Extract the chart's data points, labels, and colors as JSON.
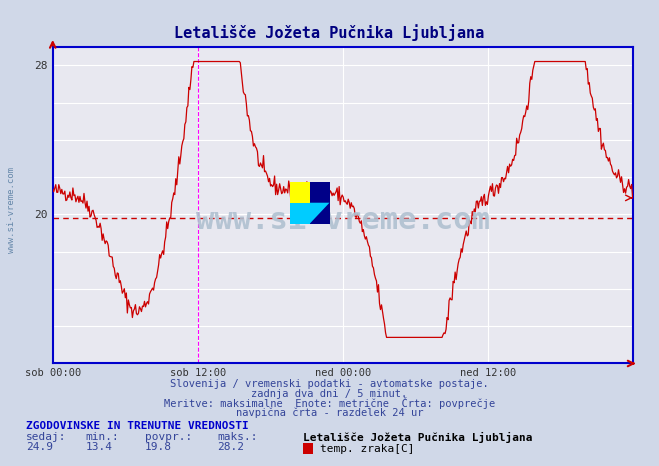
{
  "title": "Letališče Jožeta Pučnika Ljubljana",
  "title_color": "#000080",
  "bg_color": "#d0d8e8",
  "plot_bg_color": "#e8e8f0",
  "grid_color": "#ffffff",
  "line_color": "#cc0000",
  "avg_line_color": "#cc0000",
  "vline_color": "#ff00ff",
  "axis_color": "#0000cc",
  "ylim": [
    12,
    29
  ],
  "yticks": [
    14,
    16,
    18,
    20,
    22,
    24,
    26,
    28
  ],
  "ylabel_shown": [
    28,
    20
  ],
  "xlabel_ticks": [
    "sob 00:00",
    "sob 12:00",
    "ned 00:00",
    "ned 12:00"
  ],
  "avg_value": 19.8,
  "min_value": 13.4,
  "max_value": 28.2,
  "current_value": 24.9,
  "footer_line1": "Slovenija / vremenski podatki - avtomatske postaje.",
  "footer_line2": "zadnja dva dni / 5 minut.",
  "footer_line3": "Meritve: maksimalne  Enote: metrične  Črta: povprečje",
  "footer_line4": "navpična črta - razdelek 24 ur",
  "stats_header": "ZGODOVINSKE IN TRENUTNE VREDNOSTI",
  "stats_sedaj": "sedaj:",
  "stats_min": "min.:",
  "stats_povpr": "povpr.:",
  "stats_maks": "maks.:",
  "stats_values": [
    24.9,
    13.4,
    19.8,
    28.2
  ],
  "station_name": "Letališče Jožeta Pučnika Ljubljana",
  "legend_label": "temp. zraka[C]",
  "watermark": "www.si-vreme.com",
  "watermark_color": "#b0c0d0"
}
